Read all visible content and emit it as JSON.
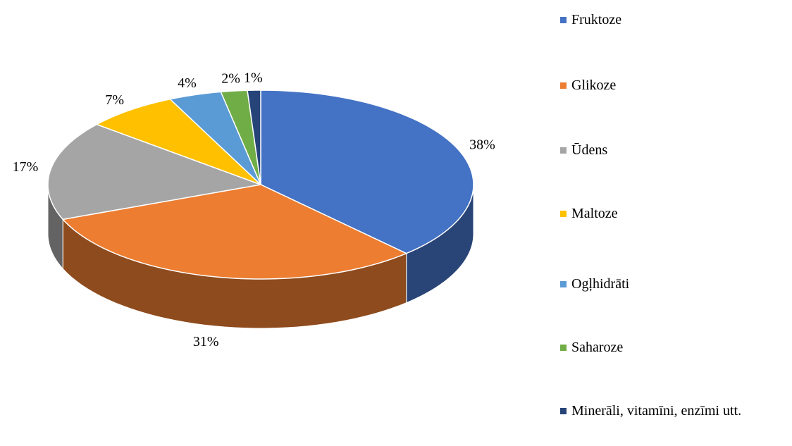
{
  "chart_data": {
    "type": "pie",
    "categories": [
      "Fruktoze",
      "Glikoze",
      "Ūdens",
      "Maltoze",
      "Ogļhidrāti",
      "Saharoze",
      "Minerāli, vitamīni, enzīmi utt."
    ],
    "values": [
      38,
      31,
      17,
      7,
      4,
      2,
      1
    ],
    "value_labels": [
      "38%",
      "31%",
      "17%",
      "7%",
      "4%",
      "2%",
      "1%"
    ],
    "colors": [
      "#4472c4",
      "#ed7d31",
      "#a5a5a5",
      "#ffc000",
      "#5b9bd5",
      "#70ad47",
      "#264478"
    ],
    "legend": "right"
  }
}
